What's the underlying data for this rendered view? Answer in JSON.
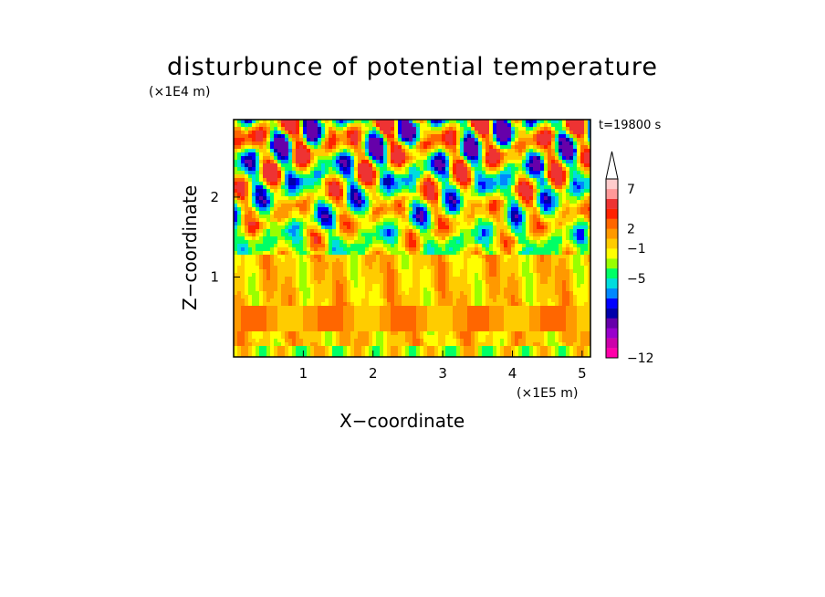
{
  "chart_data": {
    "type": "heatmap",
    "title": "disturbunce of potential temperature",
    "time_label": "t=19800 s",
    "xlabel": "X−coordinate",
    "ylabel": "Z−coordinate",
    "x_unit": "(×1E5 m)",
    "z_unit": "(×1E4 m)",
    "xlim": [
      0,
      5.12
    ],
    "zlim": [
      0,
      2.97
    ],
    "x_ticks": [
      "1",
      "2",
      "3",
      "4",
      "5"
    ],
    "z_ticks": [
      "1",
      "2"
    ],
    "colorbar": {
      "levels": [
        {
          "color": "#ff00aa"
        },
        {
          "color": "#cc00aa"
        },
        {
          "color": "#9900cc"
        },
        {
          "color": "#6600aa"
        },
        {
          "color": "#0000aa"
        },
        {
          "color": "#0000ff"
        },
        {
          "color": "#0088ff"
        },
        {
          "color": "#00dddd"
        },
        {
          "color": "#00ff66"
        },
        {
          "color": "#99ff00"
        },
        {
          "color": "#ffff00"
        },
        {
          "color": "#ffcc00"
        },
        {
          "color": "#ff9900"
        },
        {
          "color": "#ff6600"
        },
        {
          "color": "#ff2200"
        },
        {
          "color": "#ee3333"
        },
        {
          "color": "#ff9999"
        },
        {
          "color": "#ffcccc"
        }
      ],
      "tick_labels": [
        "−12",
        "−5",
        "−1",
        "2",
        "7"
      ],
      "extend": "max"
    },
    "description_fields": {
      "upper_layer_z_range": [
        1.3,
        2.97
      ],
      "lower_layer_z_range": [
        0,
        1.3
      ]
    }
  }
}
